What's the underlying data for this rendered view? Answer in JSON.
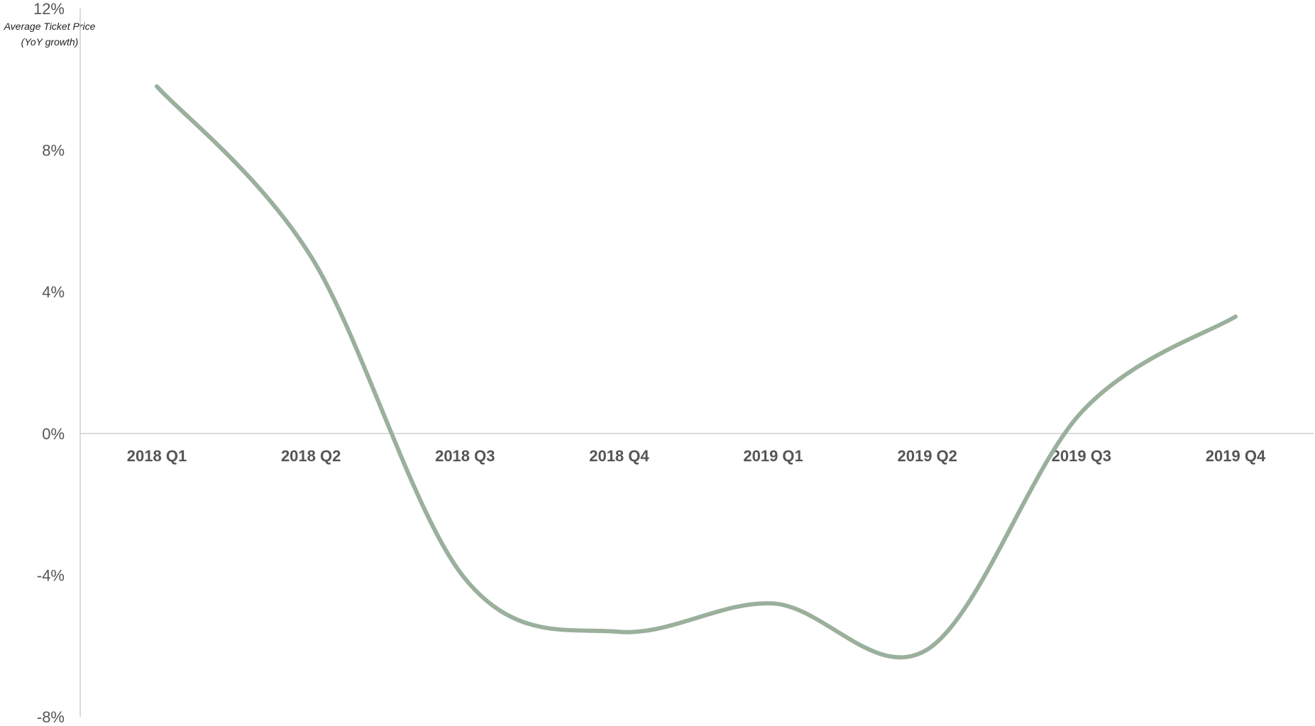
{
  "chart_data": {
    "type": "line",
    "title": "",
    "ylabel_line1": "Average Ticket Price",
    "ylabel_line2": "(YoY growth)",
    "xlabel": "",
    "categories": [
      "2018 Q1",
      "2018 Q2",
      "2018 Q3",
      "2018 Q4",
      "2019 Q1",
      "2019 Q2",
      "2019 Q3",
      "2019 Q4"
    ],
    "series": [
      {
        "values": [
          9.8,
          5.0,
          -4.1,
          -5.6,
          -4.8,
          -6.1,
          0.6,
          3.3
        ],
        "color": "#9bb09c"
      }
    ],
    "ylim": [
      -8,
      12
    ],
    "yticks": [
      12,
      8,
      4,
      0,
      -4,
      -8
    ],
    "ytick_labels": [
      "12%",
      "8%",
      "4%",
      "0%",
      "-4%",
      "-8%"
    ],
    "grid": false,
    "legend": "none"
  }
}
